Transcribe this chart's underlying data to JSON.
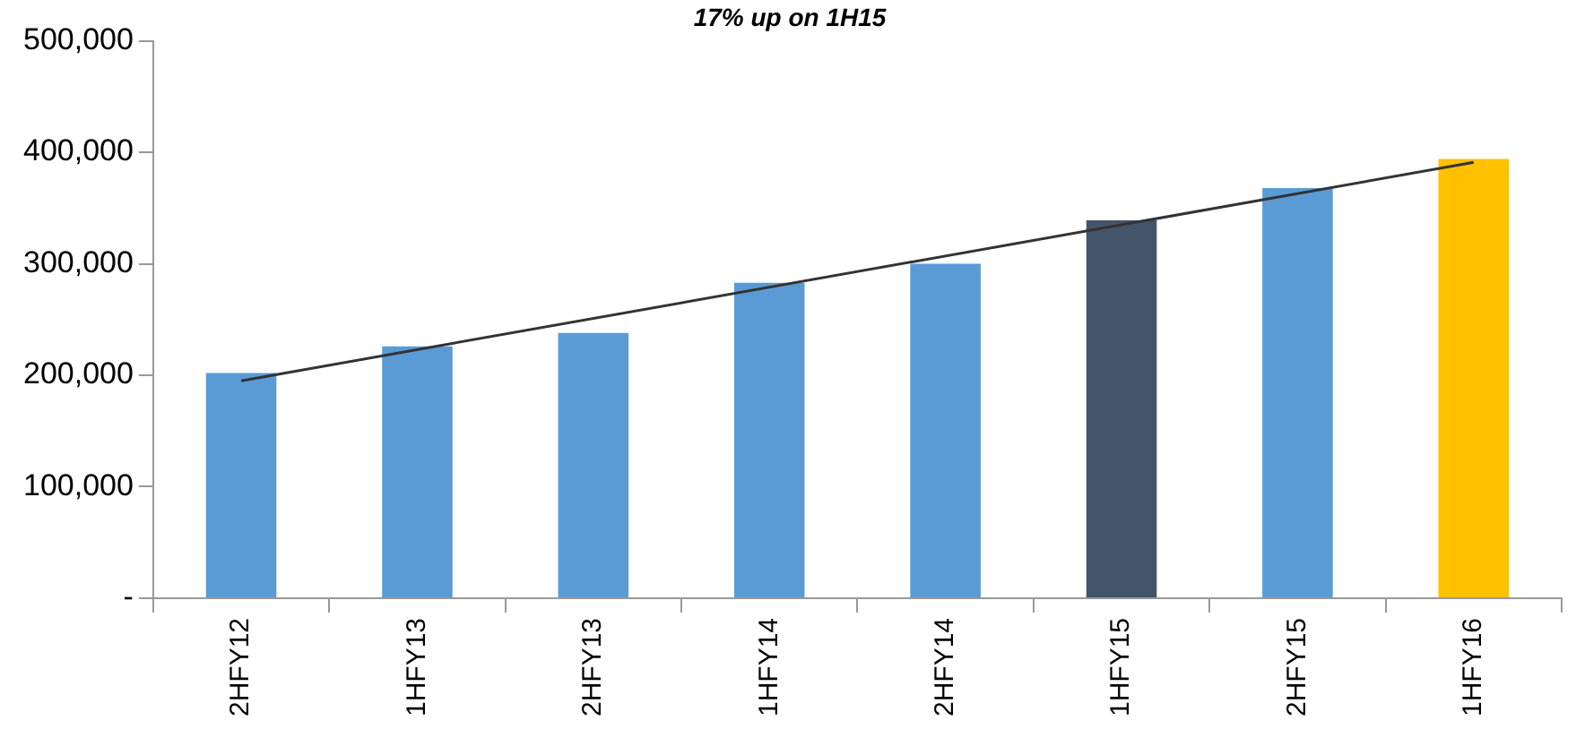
{
  "chart_data": {
    "type": "bar",
    "title": "17% up on 1H15",
    "categories": [
      "2HFY12",
      "1HFY13",
      "2HFY13",
      "1HFY14",
      "2HFY14",
      "1HFY15",
      "2HFY15",
      "1HFY16"
    ],
    "series": [
      {
        "values": [
          202000,
          226000,
          238000,
          283000,
          300000,
          339000,
          368000,
          394000
        ],
        "colors": [
          "#5b9bd5",
          "#5b9bd5",
          "#5b9bd5",
          "#5b9bd5",
          "#5b9bd5",
          "#44546a",
          "#5b9bd5",
          "#ffc000"
        ]
      },
      {
        "type": "line",
        "x": [
          "2HFY12",
          "1HFY16"
        ],
        "values": [
          195000,
          391000
        ],
        "color": "#333333"
      }
    ],
    "ylim": [
      0,
      500000
    ],
    "yticks": [
      {
        "value": 0,
        "label": "-"
      },
      {
        "value": 100000,
        "label": "100,000"
      },
      {
        "value": 200000,
        "label": "200,000"
      },
      {
        "value": 300000,
        "label": "300,000"
      },
      {
        "value": 400000,
        "label": "400,000"
      },
      {
        "value": 500000,
        "label": "500,000"
      }
    ],
    "grid": false,
    "legend": false,
    "marker": "none"
  }
}
